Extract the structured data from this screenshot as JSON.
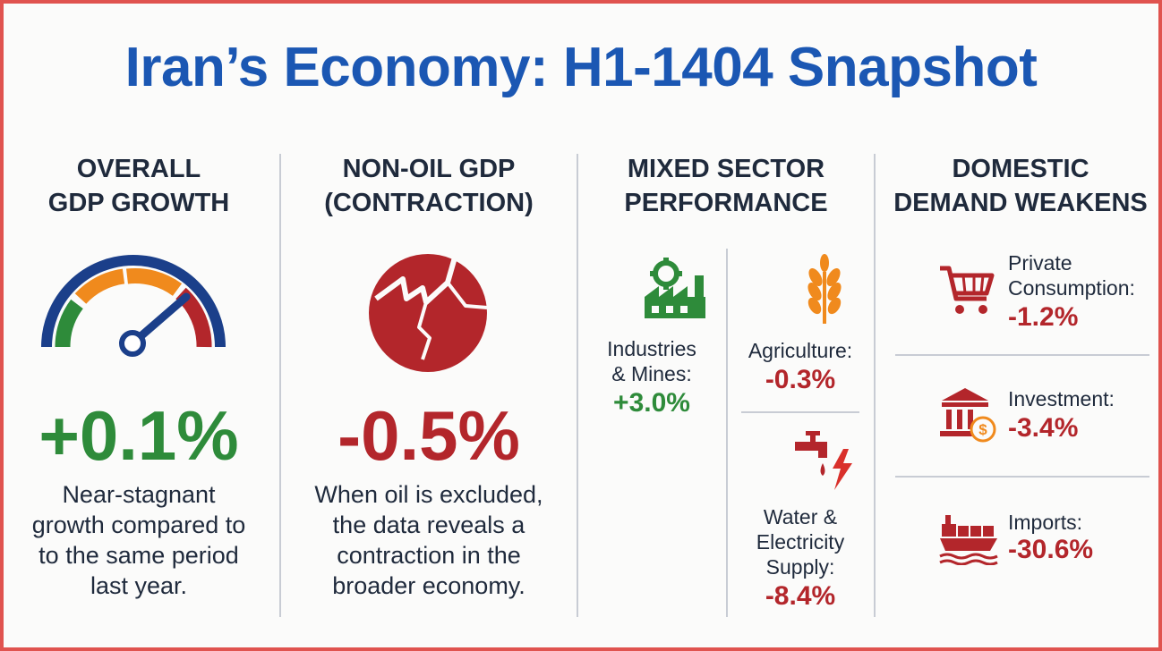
{
  "title": "Iran’s Economy: H1-1404 Snapshot",
  "colors": {
    "accent": "#1b57b3",
    "positive": "#2e8b3a",
    "negative": "#b3262b",
    "border": "#e0534f"
  },
  "panels": {
    "gdp": {
      "heading": "OVERALL\nGDP GROWTH",
      "value": "+0.1%",
      "description": "Near-stagnant\ngrowth compared to\nto the same period\nlast year.",
      "icon": "speedometer-icon"
    },
    "nonoil": {
      "heading": "NON-OIL GDP\n(CONTRACTION)",
      "value": "-0.5%",
      "description": "When oil is excluded,\nthe data reveals a\ncontraction in the\nbroader economy.",
      "icon": "cracked-circle-icon"
    },
    "sectors": {
      "heading": "MIXED SECTOR\nPERFORMANCE",
      "items": [
        {
          "label": "Industries\n& Mines:",
          "value": "+3.0%",
          "icon": "factory-gear-icon"
        },
        {
          "label": "Agriculture:",
          "value": "-0.3%",
          "icon": "wheat-icon"
        },
        {
          "label": "Water &\nElectricity\nSupply:",
          "value": "-8.4%",
          "icon": "faucet-lightning-icon"
        }
      ]
    },
    "demand": {
      "heading": "DOMESTIC\nDEMAND WEAKENS",
      "items": [
        {
          "label": "Private\nConsumption:",
          "value": "-1.2%",
          "icon": "shopping-cart-icon"
        },
        {
          "label": "Investment:",
          "value": "-3.4%",
          "icon": "bank-dollar-icon"
        },
        {
          "label": "Imports:",
          "value": "-30.6%",
          "icon": "cargo-ship-icon"
        }
      ]
    }
  }
}
